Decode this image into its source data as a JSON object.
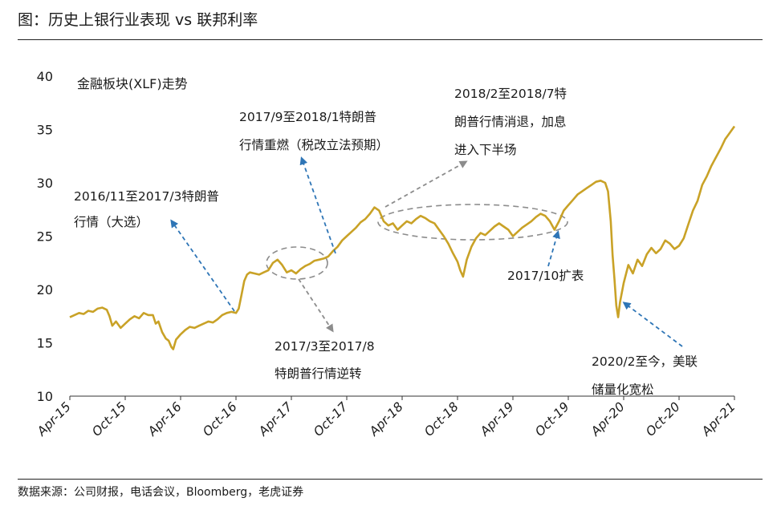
{
  "header": {
    "title": "图：历史上银行业表现 vs  联邦利率"
  },
  "footer": {
    "source": "数据来源：公司财报，电话会议，Bloomberg，老虎证券"
  },
  "colors": {
    "line": "#C9A227",
    "blue_arrow": "#2E75B6",
    "gray_arrow": "#8C8C8C",
    "axis": "#333333"
  },
  "chart_data": {
    "type": "line",
    "series_label": "金融板块(XLF)走势",
    "ylim": [
      10,
      40
    ],
    "yticks": [
      10,
      15,
      20,
      25,
      30,
      35,
      40
    ],
    "xlim": [
      0,
      72
    ],
    "xticks": [
      {
        "label": "Apr-15",
        "x": 0
      },
      {
        "label": "Oct-15",
        "x": 6
      },
      {
        "label": "Apr-16",
        "x": 12
      },
      {
        "label": "Oct-16",
        "x": 18
      },
      {
        "label": "Apr-17",
        "x": 24
      },
      {
        "label": "Oct-17",
        "x": 30
      },
      {
        "label": "Apr-18",
        "x": 36
      },
      {
        "label": "Oct-18",
        "x": 42
      },
      {
        "label": "Apr-19",
        "x": 48
      },
      {
        "label": "Oct-19",
        "x": 54
      },
      {
        "label": "Apr-20",
        "x": 60
      },
      {
        "label": "Oct-20",
        "x": 66
      },
      {
        "label": "Apr-21",
        "x": 72
      }
    ],
    "points": [
      [
        0,
        17.4
      ],
      [
        0.5,
        17.6
      ],
      [
        1,
        17.8
      ],
      [
        1.5,
        17.7
      ],
      [
        2,
        18.0
      ],
      [
        2.5,
        17.9
      ],
      [
        3,
        18.2
      ],
      [
        3.5,
        18.3
      ],
      [
        4,
        18.1
      ],
      [
        4.3,
        17.5
      ],
      [
        4.6,
        16.6
      ],
      [
        5,
        17.0
      ],
      [
        5.5,
        16.4
      ],
      [
        6,
        16.8
      ],
      [
        6.5,
        17.2
      ],
      [
        7,
        17.5
      ],
      [
        7.5,
        17.3
      ],
      [
        8,
        17.8
      ],
      [
        8.5,
        17.6
      ],
      [
        9,
        17.6
      ],
      [
        9.3,
        16.8
      ],
      [
        9.6,
        17.0
      ],
      [
        10,
        16.0
      ],
      [
        10.4,
        15.4
      ],
      [
        10.7,
        15.2
      ],
      [
        11,
        14.6
      ],
      [
        11.2,
        14.4
      ],
      [
        11.5,
        15.3
      ],
      [
        12,
        15.8
      ],
      [
        12.5,
        16.2
      ],
      [
        13,
        16.5
      ],
      [
        13.5,
        16.4
      ],
      [
        14,
        16.6
      ],
      [
        14.5,
        16.8
      ],
      [
        15,
        17.0
      ],
      [
        15.5,
        16.9
      ],
      [
        16,
        17.2
      ],
      [
        16.5,
        17.6
      ],
      [
        17,
        17.8
      ],
      [
        17.5,
        17.9
      ],
      [
        18,
        17.8
      ],
      [
        18.3,
        18.2
      ],
      [
        18.6,
        19.5
      ],
      [
        18.9,
        20.8
      ],
      [
        19.2,
        21.4
      ],
      [
        19.5,
        21.6
      ],
      [
        20,
        21.5
      ],
      [
        20.5,
        21.4
      ],
      [
        21,
        21.6
      ],
      [
        21.5,
        21.8
      ],
      [
        22,
        22.5
      ],
      [
        22.5,
        22.8
      ],
      [
        23,
        22.3
      ],
      [
        23.5,
        21.6
      ],
      [
        24,
        21.8
      ],
      [
        24.5,
        21.5
      ],
      [
        25,
        21.9
      ],
      [
        25.5,
        22.2
      ],
      [
        26,
        22.4
      ],
      [
        26.5,
        22.7
      ],
      [
        27,
        22.8
      ],
      [
        27.5,
        22.9
      ],
      [
        28,
        23.1
      ],
      [
        28.5,
        23.6
      ],
      [
        29,
        24.0
      ],
      [
        29.5,
        24.6
      ],
      [
        30,
        25.0
      ],
      [
        30.5,
        25.4
      ],
      [
        31,
        25.8
      ],
      [
        31.5,
        26.3
      ],
      [
        32,
        26.6
      ],
      [
        32.5,
        27.1
      ],
      [
        33,
        27.7
      ],
      [
        33.5,
        27.4
      ],
      [
        34,
        26.4
      ],
      [
        34.5,
        26.0
      ],
      [
        35,
        26.2
      ],
      [
        35.5,
        25.6
      ],
      [
        36,
        26.0
      ],
      [
        36.5,
        26.4
      ],
      [
        37,
        26.2
      ],
      [
        37.5,
        26.6
      ],
      [
        38,
        26.9
      ],
      [
        38.5,
        26.7
      ],
      [
        39,
        26.4
      ],
      [
        39.5,
        26.2
      ],
      [
        40,
        25.6
      ],
      [
        40.5,
        25.0
      ],
      [
        41,
        24.3
      ],
      [
        41.5,
        23.4
      ],
      [
        42,
        22.6
      ],
      [
        42.3,
        21.8
      ],
      [
        42.6,
        21.2
      ],
      [
        43,
        22.8
      ],
      [
        43.5,
        24.0
      ],
      [
        44,
        24.8
      ],
      [
        44.5,
        25.3
      ],
      [
        45,
        25.1
      ],
      [
        45.5,
        25.5
      ],
      [
        46,
        25.9
      ],
      [
        46.5,
        26.2
      ],
      [
        47,
        25.9
      ],
      [
        47.5,
        25.6
      ],
      [
        48,
        25.0
      ],
      [
        48.5,
        25.4
      ],
      [
        49,
        25.8
      ],
      [
        49.5,
        26.1
      ],
      [
        50,
        26.4
      ],
      [
        50.5,
        26.8
      ],
      [
        51,
        27.1
      ],
      [
        51.5,
        26.9
      ],
      [
        52,
        26.4
      ],
      [
        52.5,
        25.6
      ],
      [
        53,
        26.4
      ],
      [
        53.5,
        27.4
      ],
      [
        54,
        27.9
      ],
      [
        54.5,
        28.4
      ],
      [
        55,
        28.9
      ],
      [
        55.5,
        29.2
      ],
      [
        56,
        29.5
      ],
      [
        56.5,
        29.8
      ],
      [
        57,
        30.1
      ],
      [
        57.5,
        30.2
      ],
      [
        58,
        30.0
      ],
      [
        58.3,
        29.2
      ],
      [
        58.6,
        26.4
      ],
      [
        58.8,
        23.2
      ],
      [
        59,
        21.0
      ],
      [
        59.2,
        18.5
      ],
      [
        59.4,
        17.4
      ],
      [
        59.6,
        18.8
      ],
      [
        60,
        20.6
      ],
      [
        60.5,
        22.3
      ],
      [
        61,
        21.5
      ],
      [
        61.5,
        22.8
      ],
      [
        62,
        22.2
      ],
      [
        62.5,
        23.3
      ],
      [
        63,
        23.9
      ],
      [
        63.5,
        23.4
      ],
      [
        64,
        23.8
      ],
      [
        64.5,
        24.6
      ],
      [
        65,
        24.3
      ],
      [
        65.5,
        23.8
      ],
      [
        66,
        24.1
      ],
      [
        66.5,
        24.8
      ],
      [
        67,
        26.1
      ],
      [
        67.5,
        27.4
      ],
      [
        68,
        28.3
      ],
      [
        68.5,
        29.8
      ],
      [
        69,
        30.6
      ],
      [
        69.5,
        31.6
      ],
      [
        70,
        32.4
      ],
      [
        70.5,
        33.2
      ],
      [
        71,
        34.1
      ],
      [
        71.5,
        34.7
      ],
      [
        72,
        35.3
      ]
    ],
    "annotations": [
      {
        "lines": [
          "2016/11至2017/3特朗普",
          "行情（大选）"
        ],
        "arrow": "blue"
      },
      {
        "lines": [
          "2017/9至2018/1特朗普",
          "行情重燃（税改立法预期）"
        ],
        "arrow": "blue"
      },
      {
        "lines": [
          "2018/2至2018/7特",
          "朗普行情消退，加息",
          "进入下半场"
        ],
        "arrow": "gray"
      },
      {
        "lines": [
          "2017/3至2017/8",
          "特朗普行情逆转"
        ],
        "arrow": "gray"
      },
      {
        "lines": [
          "2017/10扩表"
        ],
        "arrow": "blue"
      },
      {
        "lines": [
          "2020/2至今，美联",
          "储量化宽松"
        ],
        "arrow": "blue"
      }
    ]
  }
}
